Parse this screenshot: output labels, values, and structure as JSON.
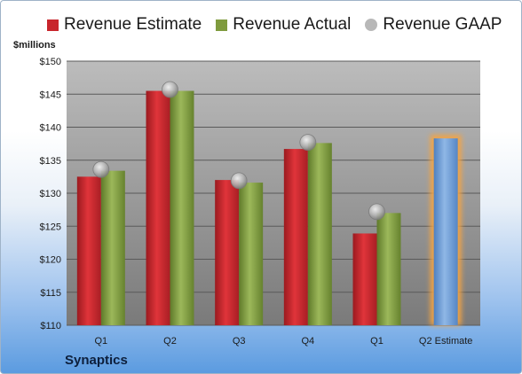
{
  "company": "Synaptics",
  "colors": {
    "estimate": "#c8262c",
    "actual": "#7f9b3e",
    "gaap": "#b8b8b8",
    "highlight_bar": "#6f9fd8",
    "highlight_glow": "#f5a442"
  },
  "chart_data": {
    "type": "bar",
    "ylabel": "$millions",
    "ylim": [
      110,
      150
    ],
    "ytick_step": 5,
    "ytick_labels": [
      "$110",
      "$115",
      "$120",
      "$125",
      "$130",
      "$135",
      "$140",
      "$145",
      "$150"
    ],
    "categories": [
      "Q1",
      "Q2",
      "Q3",
      "Q4",
      "Q1",
      "Q2 Estimate"
    ],
    "series": [
      {
        "name": "Revenue Estimate",
        "kind": "bar",
        "values": [
          132.5,
          145.5,
          132.0,
          136.7,
          123.9,
          138.3
        ]
      },
      {
        "name": "Revenue Actual",
        "kind": "bar",
        "values": [
          133.4,
          145.5,
          131.6,
          137.6,
          127.0,
          null
        ]
      },
      {
        "name": "Revenue GAAP",
        "kind": "marker",
        "values": [
          133.6,
          145.7,
          131.9,
          137.7,
          127.2,
          null
        ]
      }
    ],
    "grid": true,
    "legend": "top"
  }
}
